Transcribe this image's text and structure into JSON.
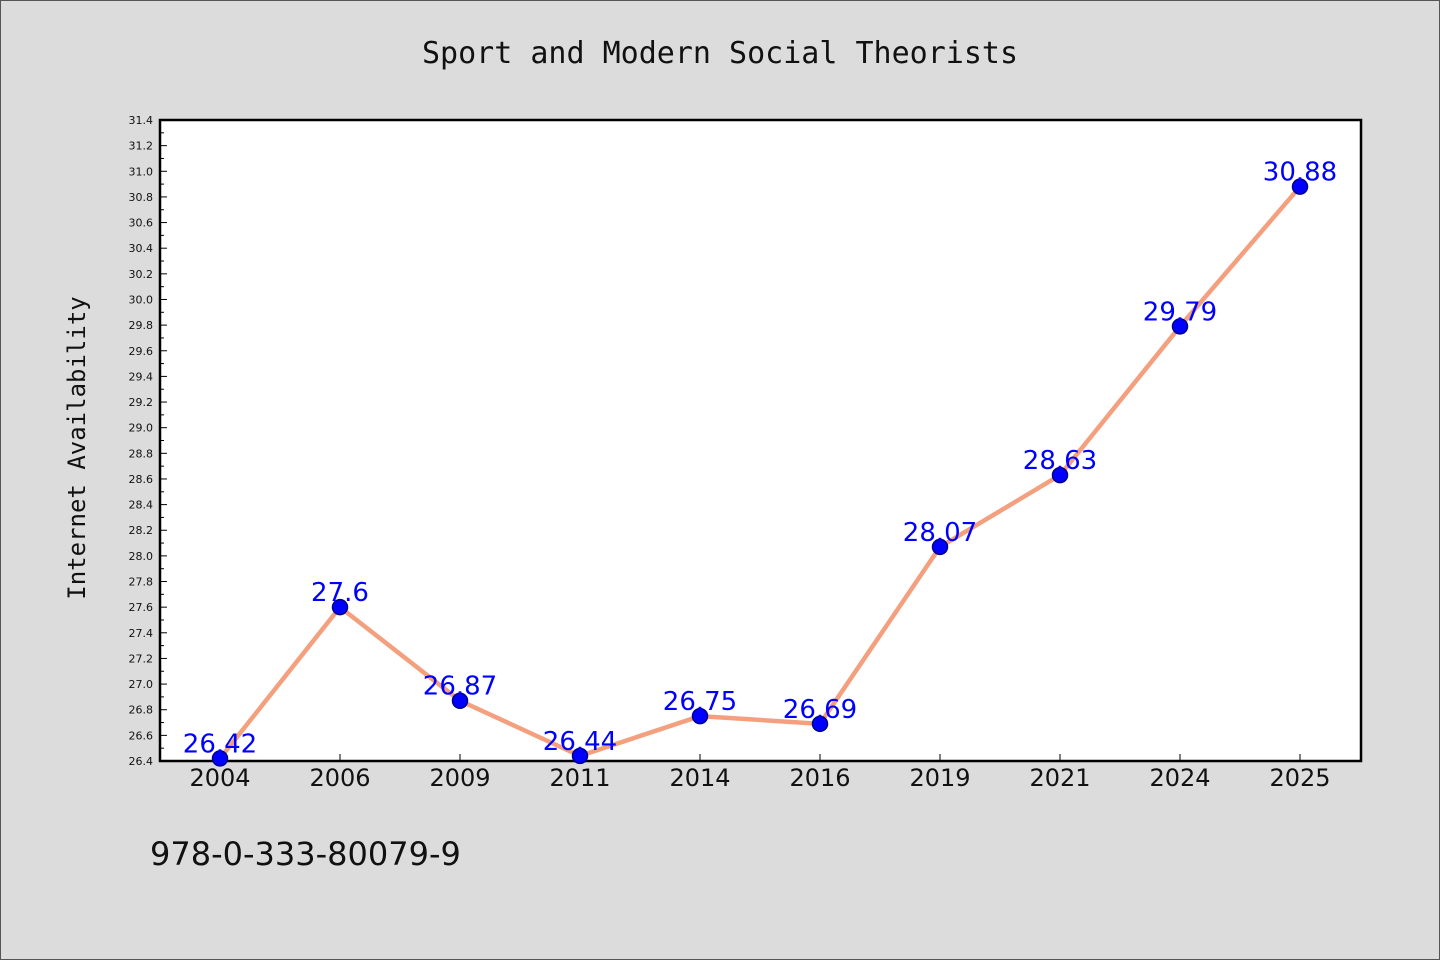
{
  "chart_data": {
    "type": "line",
    "title": "Sport and Modern Social Theorists",
    "xlabel": "",
    "ylabel": "Internet Availability",
    "categories": [
      "2004",
      "2006",
      "2009",
      "2011",
      "2014",
      "2016",
      "2019",
      "2021",
      "2024",
      "2025"
    ],
    "series": [
      {
        "values": [
          26.42,
          27.6,
          26.87,
          26.44,
          26.75,
          26.69,
          28.07,
          28.63,
          29.79,
          30.88
        ]
      }
    ],
    "ylim": [
      26.4,
      31.4
    ],
    "ytick_step": 0.2,
    "grid": false,
    "data_labels": true,
    "colors": {
      "line": "#f4a07e",
      "marker": "#0000ff",
      "marker_edge": "#00008b",
      "data_label": "#0000ff",
      "background": "#dcdcdc",
      "plot_background": "#ffffff"
    }
  },
  "footer": {
    "isbn": "978-0-333-80079-9"
  }
}
